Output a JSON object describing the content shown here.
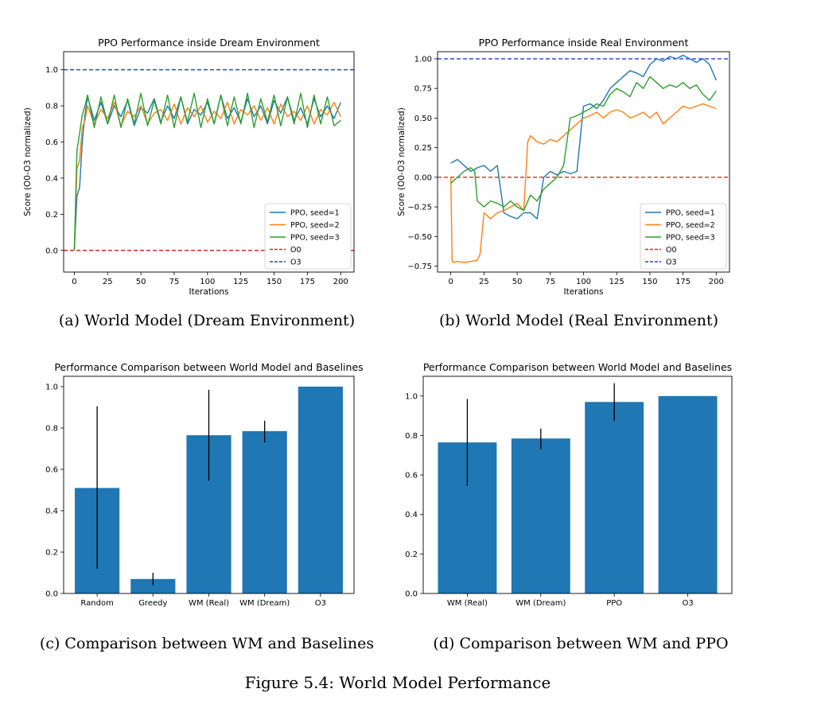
{
  "figure_title": "Figure 5.4: World Model Performance",
  "captions": {
    "a": "(a) World Model (Dream Environment)",
    "b": "(b) World Model (Real Environment)",
    "c": "(c) Comparison between WM and Baselines",
    "d": "(d) Comparison between WM and PPO"
  },
  "colors": {
    "seed1": "#1f77b4",
    "seed2": "#ff7f0e",
    "seed3": "#2ca02c",
    "o0": "#d62728",
    "o3": "#1f3fd6",
    "bar": "#1f77b4"
  },
  "chart_data": [
    {
      "id": "a",
      "type": "line",
      "title": "PPO Performance inside Dream Environment",
      "xlabel": "Iterations",
      "ylabel": "Score (O0-O3 normalized)",
      "xlim": [
        -8,
        210
      ],
      "ylim": [
        -0.12,
        1.1
      ],
      "xticks": [
        0,
        25,
        50,
        75,
        100,
        125,
        150,
        175,
        200
      ],
      "yticks": [
        0.0,
        0.2,
        0.4,
        0.6,
        0.8,
        1.0
      ],
      "ytick_labels": [
        "0.0",
        "0.2",
        "0.4",
        "0.6",
        "0.8",
        "1.0"
      ],
      "legend": [
        "PPO, seed=1",
        "PPO, seed=2",
        "PPO, seed=3",
        "O0",
        "O3"
      ],
      "legend_position": "lower right",
      "reference_lines": [
        {
          "name": "O0",
          "y": 0.0,
          "color_key": "o0"
        },
        {
          "name": "O3",
          "y": 1.0,
          "color_key": "o3"
        }
      ],
      "series": [
        {
          "name": "PPO, seed=1",
          "color_key": "seed1",
          "x": [
            0,
            2,
            4,
            6,
            8,
            10,
            15,
            20,
            25,
            30,
            35,
            40,
            45,
            50,
            55,
            60,
            65,
            70,
            75,
            80,
            85,
            90,
            95,
            100,
            105,
            110,
            115,
            120,
            125,
            130,
            135,
            140,
            145,
            150,
            155,
            160,
            165,
            170,
            175,
            180,
            185,
            190,
            195,
            200
          ],
          "values": [
            0.0,
            0.3,
            0.35,
            0.6,
            0.75,
            0.85,
            0.72,
            0.82,
            0.7,
            0.8,
            0.74,
            0.83,
            0.69,
            0.79,
            0.76,
            0.84,
            0.71,
            0.8,
            0.73,
            0.85,
            0.7,
            0.78,
            0.75,
            0.82,
            0.7,
            0.86,
            0.73,
            0.79,
            0.71,
            0.84,
            0.74,
            0.8,
            0.7,
            0.83,
            0.76,
            0.85,
            0.72,
            0.79,
            0.7,
            0.84,
            0.74,
            0.8,
            0.73,
            0.82
          ]
        },
        {
          "name": "PPO, seed=2",
          "color_key": "seed2",
          "x": [
            0,
            2,
            4,
            6,
            8,
            10,
            15,
            20,
            25,
            30,
            35,
            40,
            45,
            50,
            55,
            60,
            65,
            70,
            75,
            80,
            85,
            90,
            95,
            100,
            105,
            110,
            115,
            120,
            125,
            130,
            135,
            140,
            145,
            150,
            155,
            160,
            165,
            170,
            175,
            180,
            185,
            190,
            195,
            200
          ],
          "values": [
            0.0,
            0.45,
            0.5,
            0.68,
            0.72,
            0.8,
            0.7,
            0.78,
            0.73,
            0.82,
            0.69,
            0.77,
            0.74,
            0.8,
            0.7,
            0.76,
            0.78,
            0.72,
            0.81,
            0.7,
            0.79,
            0.74,
            0.8,
            0.71,
            0.77,
            0.73,
            0.82,
            0.7,
            0.78,
            0.75,
            0.8,
            0.72,
            0.79,
            0.7,
            0.81,
            0.74,
            0.77,
            0.72,
            0.8,
            0.7,
            0.78,
            0.75,
            0.82,
            0.74
          ]
        },
        {
          "name": "PPO, seed=3",
          "color_key": "seed3",
          "x": [
            0,
            2,
            4,
            6,
            8,
            10,
            15,
            20,
            25,
            30,
            35,
            40,
            45,
            50,
            55,
            60,
            65,
            70,
            75,
            80,
            85,
            90,
            95,
            100,
            105,
            110,
            115,
            120,
            125,
            130,
            135,
            140,
            145,
            150,
            155,
            160,
            165,
            170,
            175,
            180,
            185,
            190,
            195,
            200
          ],
          "values": [
            0.0,
            0.55,
            0.65,
            0.75,
            0.8,
            0.86,
            0.68,
            0.85,
            0.7,
            0.86,
            0.68,
            0.84,
            0.7,
            0.87,
            0.69,
            0.83,
            0.7,
            0.86,
            0.68,
            0.85,
            0.71,
            0.87,
            0.68,
            0.84,
            0.7,
            0.86,
            0.69,
            0.85,
            0.7,
            0.87,
            0.68,
            0.84,
            0.71,
            0.86,
            0.69,
            0.85,
            0.7,
            0.87,
            0.68,
            0.86,
            0.7,
            0.85,
            0.69,
            0.72
          ]
        }
      ]
    },
    {
      "id": "b",
      "type": "line",
      "title": "PPO Performance inside Real Environment",
      "xlabel": "Iterations",
      "ylabel": "Score (O0-O3 normalized)",
      "xlim": [
        -10,
        210
      ],
      "ylim": [
        -0.8,
        1.06
      ],
      "xticks": [
        0,
        25,
        50,
        75,
        100,
        125,
        150,
        175,
        200
      ],
      "yticks": [
        -0.75,
        -0.5,
        -0.25,
        0.0,
        0.25,
        0.5,
        0.75,
        1.0
      ],
      "ytick_labels": [
        "−0.75",
        "−0.50",
        "−0.25",
        "0.00",
        "0.25",
        "0.50",
        "0.75",
        "1.00"
      ],
      "legend": [
        "PPO, seed=1",
        "PPO, seed=2",
        "PPO, seed=3",
        "O0",
        "O3"
      ],
      "legend_position": "lower right",
      "reference_lines": [
        {
          "name": "O0",
          "y": 0.0,
          "color_key": "o0"
        },
        {
          "name": "O3",
          "y": 1.0,
          "color_key": "o3"
        }
      ],
      "series": [
        {
          "name": "PPO, seed=1",
          "color_key": "seed1",
          "x": [
            0,
            5,
            10,
            15,
            20,
            25,
            30,
            35,
            40,
            45,
            50,
            55,
            60,
            65,
            70,
            75,
            80,
            85,
            90,
            95,
            100,
            105,
            110,
            115,
            120,
            125,
            130,
            135,
            140,
            145,
            150,
            155,
            160,
            165,
            170,
            175,
            180,
            185,
            190,
            195,
            200
          ],
          "values": [
            0.12,
            0.15,
            0.1,
            0.05,
            0.08,
            0.1,
            0.05,
            0.1,
            -0.3,
            -0.33,
            -0.35,
            -0.3,
            -0.3,
            -0.35,
            0.0,
            0.05,
            0.02,
            0.05,
            0.03,
            0.05,
            0.6,
            0.62,
            0.58,
            0.65,
            0.75,
            0.8,
            0.85,
            0.9,
            0.88,
            0.85,
            0.95,
            1.0,
            0.98,
            1.02,
            1.0,
            1.03,
            1.0,
            0.97,
            1.0,
            0.95,
            0.82
          ]
        },
        {
          "name": "PPO, seed=2",
          "color_key": "seed2",
          "x": [
            0,
            1,
            2,
            5,
            10,
            15,
            20,
            22,
            25,
            30,
            35,
            40,
            45,
            50,
            55,
            58,
            60,
            65,
            70,
            75,
            80,
            85,
            90,
            95,
            100,
            105,
            110,
            115,
            120,
            125,
            130,
            135,
            140,
            145,
            150,
            155,
            160,
            165,
            170,
            175,
            180,
            185,
            190,
            195,
            200
          ],
          "values": [
            0.0,
            -0.7,
            -0.72,
            -0.71,
            -0.72,
            -0.71,
            -0.7,
            -0.65,
            -0.3,
            -0.35,
            -0.3,
            -0.28,
            -0.25,
            -0.22,
            -0.28,
            0.3,
            0.35,
            0.3,
            0.28,
            0.32,
            0.3,
            0.35,
            0.4,
            0.45,
            0.5,
            0.52,
            0.55,
            0.5,
            0.55,
            0.57,
            0.55,
            0.5,
            0.52,
            0.55,
            0.5,
            0.55,
            0.45,
            0.5,
            0.55,
            0.6,
            0.58,
            0.6,
            0.62,
            0.6,
            0.58
          ]
        },
        {
          "name": "PPO, seed=3",
          "color_key": "seed3",
          "x": [
            0,
            5,
            10,
            15,
            18,
            20,
            25,
            30,
            35,
            40,
            45,
            50,
            55,
            60,
            65,
            70,
            75,
            80,
            85,
            90,
            95,
            100,
            105,
            110,
            115,
            120,
            125,
            130,
            135,
            140,
            145,
            150,
            155,
            160,
            165,
            170,
            175,
            180,
            185,
            190,
            195,
            200
          ],
          "values": [
            -0.05,
            0.0,
            0.05,
            0.08,
            0.05,
            -0.2,
            -0.25,
            -0.2,
            -0.22,
            -0.25,
            -0.2,
            -0.25,
            -0.28,
            -0.15,
            -0.2,
            -0.1,
            -0.05,
            0.0,
            0.1,
            0.5,
            0.52,
            0.55,
            0.58,
            0.62,
            0.6,
            0.7,
            0.75,
            0.72,
            0.68,
            0.8,
            0.75,
            0.85,
            0.8,
            0.75,
            0.78,
            0.76,
            0.8,
            0.75,
            0.78,
            0.7,
            0.65,
            0.73
          ]
        }
      ]
    },
    {
      "id": "c",
      "type": "bar",
      "title": "Performance Comparison between World Model and Baselines",
      "xlabel": "",
      "ylabel": "",
      "ylim": [
        0,
        1.05
      ],
      "yticks": [
        0.0,
        0.2,
        0.4,
        0.6,
        0.8,
        1.0
      ],
      "ytick_labels": [
        "0.0",
        "0.2",
        "0.4",
        "0.6",
        "0.8",
        "1.0"
      ],
      "categories": [
        "Random",
        "Greedy",
        "WM (Real)",
        "WM (Dream)",
        "O3"
      ],
      "values": [
        0.51,
        0.07,
        0.765,
        0.785,
        1.0
      ],
      "error_low": [
        0.12,
        0.04,
        0.545,
        0.73,
        1.0
      ],
      "error_high": [
        0.905,
        0.1,
        0.985,
        0.835,
        1.0
      ]
    },
    {
      "id": "d",
      "type": "bar",
      "title": "Performance Comparison between World Model and Baselines",
      "xlabel": "",
      "ylabel": "",
      "ylim": [
        0,
        1.1
      ],
      "yticks": [
        0.0,
        0.2,
        0.4,
        0.6,
        0.8,
        1.0
      ],
      "ytick_labels": [
        "0.0",
        "0.2",
        "0.4",
        "0.6",
        "0.8",
        "1.0"
      ],
      "categories": [
        "WM (Real)",
        "WM (Dream)",
        "PPO",
        "O3"
      ],
      "values": [
        0.765,
        0.785,
        0.97,
        1.0
      ],
      "error_low": [
        0.545,
        0.73,
        0.875,
        1.0
      ],
      "error_high": [
        0.985,
        0.835,
        1.065,
        1.0
      ]
    }
  ]
}
